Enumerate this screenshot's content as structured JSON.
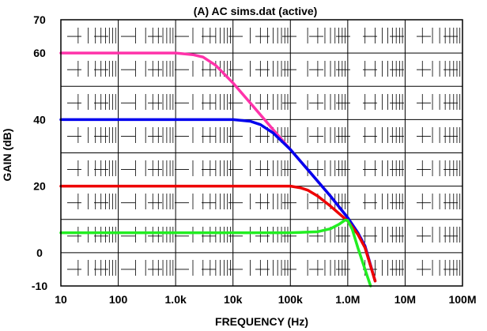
{
  "chart_data": {
    "type": "line",
    "title": "(A) AC sims.dat (active)",
    "xlabel": "FREQUENCY (Hz)",
    "ylabel": "GAIN (dB)",
    "x_scale": "log",
    "xlim": [
      10,
      100000000
    ],
    "ylim": [
      -10,
      70
    ],
    "grid": true,
    "x_ticks": [
      {
        "value": 10,
        "label": "10"
      },
      {
        "value": 100,
        "label": "100"
      },
      {
        "value": 1000,
        "label": "1.0k"
      },
      {
        "value": 10000,
        "label": "10k"
      },
      {
        "value": 100000,
        "label": "100k"
      },
      {
        "value": 1000000,
        "label": "1.0M"
      },
      {
        "value": 10000000,
        "label": "10M"
      },
      {
        "value": 100000000,
        "label": "100M"
      }
    ],
    "y_ticks": [
      {
        "value": 70,
        "label": "70"
      },
      {
        "value": 60,
        "label": "60"
      },
      {
        "value": 40,
        "label": "40"
      },
      {
        "value": 20,
        "label": "20"
      },
      {
        "value": 0,
        "label": "0"
      },
      {
        "value": -10,
        "label": "-10"
      }
    ],
    "series": [
      {
        "color": "#ff33aa",
        "x": [
          10,
          100,
          1000,
          2000,
          3000,
          5000,
          10000,
          20000,
          50000,
          100000,
          200000,
          500000,
          1000000,
          1500000,
          2000000,
          3000000
        ],
        "y": [
          60,
          60,
          60,
          59.5,
          58.8,
          56.3,
          51,
          45,
          37,
          31,
          25,
          17,
          10.5,
          6,
          2,
          -8.5
        ]
      },
      {
        "color": "#0000ee",
        "x": [
          10,
          100,
          1000,
          10000,
          20000,
          30000,
          50000,
          100000,
          200000,
          500000,
          1000000,
          1500000,
          2000000,
          3000000
        ],
        "y": [
          40,
          40,
          40,
          40,
          39.5,
          38.5,
          36,
          31,
          25,
          17,
          10.5,
          6,
          2,
          -8.5
        ]
      },
      {
        "color": "#ee0000",
        "x": [
          10,
          100,
          1000,
          10000,
          100000,
          150000,
          200000,
          300000,
          500000,
          1000000,
          1500000,
          2000000,
          3000000
        ],
        "y": [
          20,
          20,
          20,
          20,
          20,
          19.5,
          18.8,
          17,
          14,
          9.5,
          5.5,
          1.5,
          -8.5
        ]
      },
      {
        "color": "#22ee22",
        "x": [
          10,
          100,
          1000,
          10000,
          100000,
          300000,
          500000,
          700000,
          900000,
          1000000,
          1200000,
          1500000,
          2000000,
          2500000
        ],
        "y": [
          6,
          6,
          6,
          6,
          6,
          6.3,
          7.2,
          8.5,
          9.8,
          9.7,
          7,
          1.5,
          -5,
          -10
        ]
      }
    ]
  }
}
